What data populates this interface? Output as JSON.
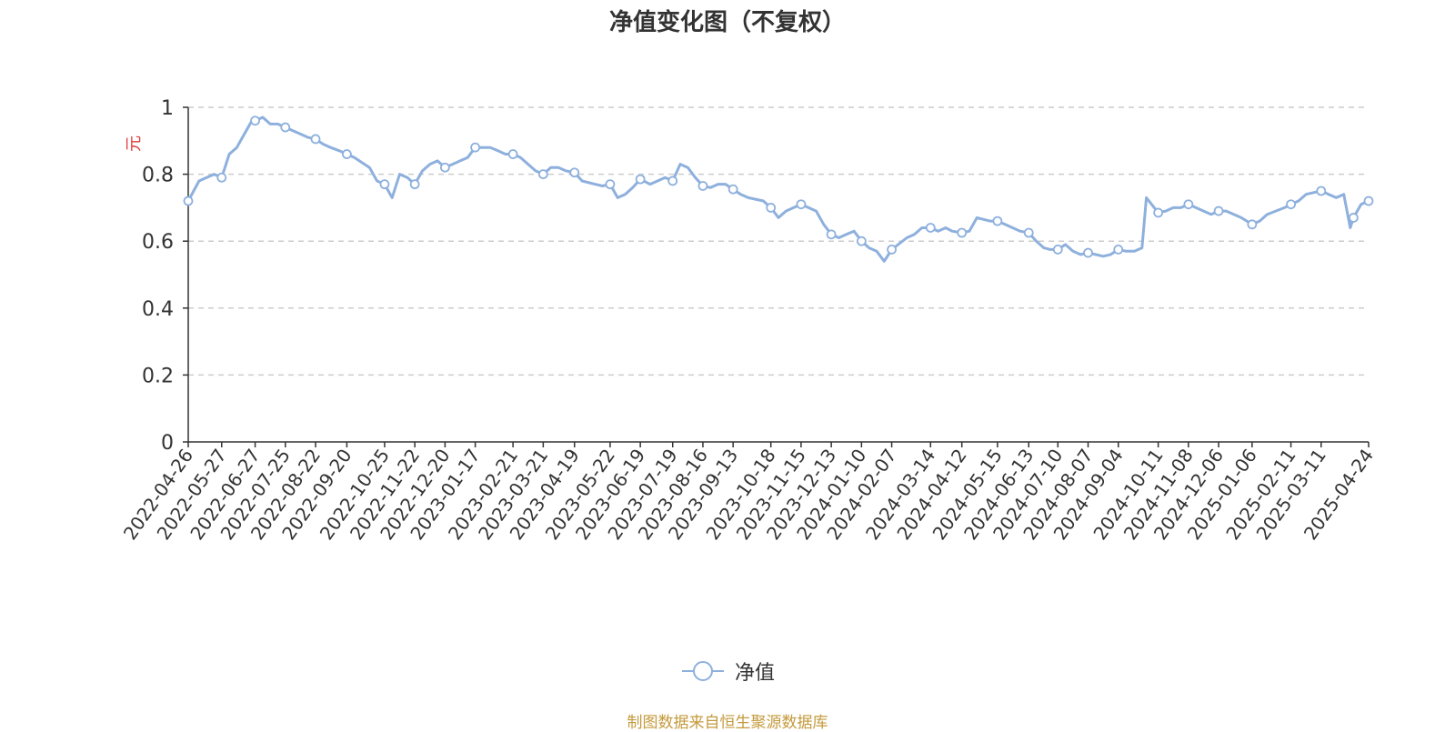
{
  "chart_data": {
    "type": "line",
    "title": "净值变化图（不复权）",
    "ylabel": "元",
    "xlabel": "",
    "ylim": [
      0,
      1
    ],
    "yticks": [
      "0",
      "0.2",
      "0.4",
      "0.6",
      "0.8",
      "1"
    ],
    "grid": true,
    "legend_position": "bottom-center",
    "colors": {
      "series": "#8eb0dd",
      "ylabel": "#e03c3c",
      "source": "#c49a3c"
    },
    "x_tick_labels": [
      "2022-04-26",
      "2022-05-27",
      "2022-06-27",
      "2022-07-25",
      "2022-08-22",
      "2022-09-20",
      "2022-10-25",
      "2022-11-22",
      "2022-12-20",
      "2023-01-17",
      "2023-02-21",
      "2023-03-21",
      "2023-04-19",
      "2023-05-22",
      "2023-06-19",
      "2023-07-19",
      "2023-08-16",
      "2023-09-13",
      "2023-10-18",
      "2023-11-15",
      "2023-12-13",
      "2024-01-10",
      "2024-02-07",
      "2024-03-14",
      "2024-04-12",
      "2024-05-15",
      "2024-06-13",
      "2024-07-10",
      "2024-08-07",
      "2024-09-04",
      "2024-10-11",
      "2024-11-08",
      "2024-12-06",
      "2025-01-06",
      "2025-02-11",
      "2025-03-11",
      "2025-04-24"
    ],
    "series": [
      {
        "name": "净值",
        "x": [
          "2022-04-26",
          "2022-05-06",
          "2022-05-13",
          "2022-05-20",
          "2022-05-27",
          "2022-06-03",
          "2022-06-10",
          "2022-06-17",
          "2022-06-24",
          "2022-06-27",
          "2022-07-04",
          "2022-07-11",
          "2022-07-18",
          "2022-07-25",
          "2022-08-01",
          "2022-08-08",
          "2022-08-15",
          "2022-08-22",
          "2022-08-29",
          "2022-09-05",
          "2022-09-13",
          "2022-09-20",
          "2022-09-27",
          "2022-10-11",
          "2022-10-18",
          "2022-10-25",
          "2022-11-01",
          "2022-11-08",
          "2022-11-15",
          "2022-11-22",
          "2022-11-29",
          "2022-12-06",
          "2022-12-13",
          "2022-12-20",
          "2022-12-27",
          "2023-01-03",
          "2023-01-10",
          "2023-01-17",
          "2023-01-31",
          "2023-02-07",
          "2023-02-14",
          "2023-02-21",
          "2023-02-28",
          "2023-03-07",
          "2023-03-14",
          "2023-03-21",
          "2023-03-28",
          "2023-04-04",
          "2023-04-11",
          "2023-04-19",
          "2023-04-26",
          "2023-05-08",
          "2023-05-15",
          "2023-05-22",
          "2023-05-29",
          "2023-06-05",
          "2023-06-12",
          "2023-06-19",
          "2023-06-28",
          "2023-07-05",
          "2023-07-12",
          "2023-07-19",
          "2023-07-26",
          "2023-08-02",
          "2023-08-09",
          "2023-08-16",
          "2023-08-23",
          "2023-08-30",
          "2023-09-06",
          "2023-09-13",
          "2023-09-20",
          "2023-09-27",
          "2023-10-11",
          "2023-10-18",
          "2023-10-25",
          "2023-11-01",
          "2023-11-08",
          "2023-11-15",
          "2023-11-22",
          "2023-11-29",
          "2023-12-06",
          "2023-12-13",
          "2023-12-20",
          "2023-12-27",
          "2024-01-03",
          "2024-01-10",
          "2024-01-17",
          "2024-01-24",
          "2024-01-31",
          "2024-02-07",
          "2024-02-21",
          "2024-02-28",
          "2024-03-06",
          "2024-03-14",
          "2024-03-21",
          "2024-03-28",
          "2024-04-03",
          "2024-04-12",
          "2024-04-19",
          "2024-04-26",
          "2024-05-08",
          "2024-05-15",
          "2024-05-22",
          "2024-05-29",
          "2024-06-05",
          "2024-06-13",
          "2024-06-20",
          "2024-06-27",
          "2024-07-03",
          "2024-07-10",
          "2024-07-17",
          "2024-07-24",
          "2024-07-31",
          "2024-08-07",
          "2024-08-14",
          "2024-08-21",
          "2024-08-28",
          "2024-09-04",
          "2024-09-11",
          "2024-09-19",
          "2024-09-26",
          "2024-09-30",
          "2024-10-11",
          "2024-10-18",
          "2024-10-25",
          "2024-11-01",
          "2024-11-08",
          "2024-11-15",
          "2024-11-22",
          "2024-11-29",
          "2024-12-06",
          "2024-12-13",
          "2024-12-20",
          "2024-12-27",
          "2025-01-06",
          "2025-01-13",
          "2025-01-20",
          "2025-02-05",
          "2025-02-11",
          "2025-02-18",
          "2025-02-25",
          "2025-03-04",
          "2025-03-11",
          "2025-03-18",
          "2025-03-25",
          "2025-04-01",
          "2025-04-07",
          "2025-04-10",
          "2025-04-17",
          "2025-04-24"
        ],
        "values": [
          0.72,
          0.78,
          0.79,
          0.8,
          0.79,
          0.86,
          0.88,
          0.92,
          0.96,
          0.96,
          0.97,
          0.95,
          0.95,
          0.94,
          0.93,
          0.92,
          0.91,
          0.905,
          0.89,
          0.88,
          0.87,
          0.86,
          0.85,
          0.82,
          0.78,
          0.77,
          0.73,
          0.8,
          0.79,
          0.77,
          0.81,
          0.83,
          0.84,
          0.82,
          0.83,
          0.84,
          0.85,
          0.88,
          0.88,
          0.87,
          0.86,
          0.86,
          0.85,
          0.83,
          0.81,
          0.8,
          0.82,
          0.82,
          0.81,
          0.805,
          0.78,
          0.77,
          0.765,
          0.77,
          0.73,
          0.74,
          0.76,
          0.785,
          0.77,
          0.78,
          0.79,
          0.78,
          0.83,
          0.82,
          0.79,
          0.765,
          0.76,
          0.77,
          0.77,
          0.755,
          0.74,
          0.73,
          0.72,
          0.7,
          0.67,
          0.69,
          0.7,
          0.71,
          0.7,
          0.69,
          0.65,
          0.62,
          0.61,
          0.62,
          0.63,
          0.6,
          0.58,
          0.57,
          0.54,
          0.575,
          0.61,
          0.62,
          0.64,
          0.64,
          0.63,
          0.64,
          0.63,
          0.625,
          0.63,
          0.67,
          0.66,
          0.66,
          0.65,
          0.64,
          0.63,
          0.625,
          0.6,
          0.58,
          0.575,
          0.575,
          0.59,
          0.57,
          0.56,
          0.565,
          0.56,
          0.555,
          0.56,
          0.575,
          0.57,
          0.57,
          0.58,
          0.73,
          0.685,
          0.69,
          0.7,
          0.7,
          0.71,
          0.7,
          0.69,
          0.68,
          0.69,
          0.69,
          0.68,
          0.67,
          0.65,
          0.66,
          0.68,
          0.7,
          0.71,
          0.72,
          0.74,
          0.745,
          0.75,
          0.74,
          0.73,
          0.74,
          0.64,
          0.67,
          0.71,
          0.72
        ],
        "marker_points_x": [
          "2022-04-26",
          "2022-05-27",
          "2022-06-27",
          "2022-07-25",
          "2022-08-22",
          "2022-09-20",
          "2022-10-25",
          "2022-11-22",
          "2022-12-20",
          "2023-01-17",
          "2023-02-21",
          "2023-03-21",
          "2023-04-19",
          "2023-05-22",
          "2023-06-19",
          "2023-07-19",
          "2023-08-16",
          "2023-09-13",
          "2023-10-18",
          "2023-11-15",
          "2023-12-13",
          "2024-01-10",
          "2024-02-07",
          "2024-03-14",
          "2024-04-12",
          "2024-05-15",
          "2024-06-13",
          "2024-07-10",
          "2024-08-07",
          "2024-09-04",
          "2024-10-11",
          "2024-11-08",
          "2024-12-06",
          "2025-01-06",
          "2025-02-11",
          "2025-03-11",
          "2025-04-10",
          "2025-04-24"
        ]
      }
    ]
  },
  "legend": {
    "label": "净值"
  },
  "source_note": "制图数据来自恒生聚源数据库"
}
